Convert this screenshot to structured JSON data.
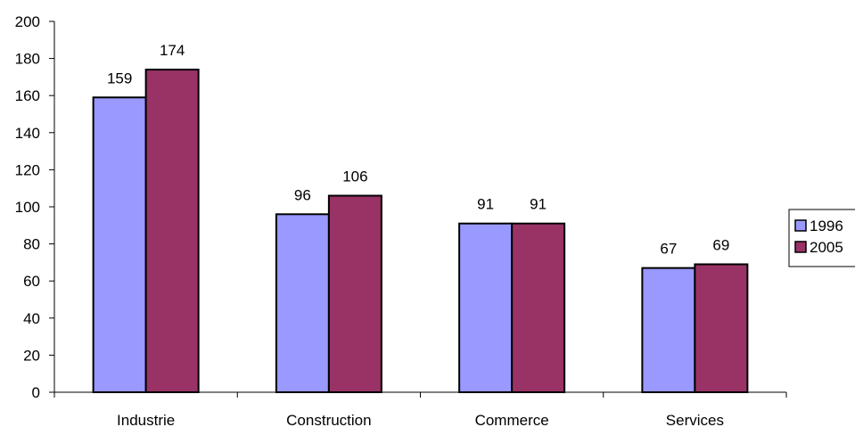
{
  "chart_data": {
    "type": "bar",
    "categories": [
      "Industrie",
      "Construction",
      "Commerce",
      "Services"
    ],
    "series": [
      {
        "name": "1996",
        "values": [
          159,
          96,
          91,
          67
        ],
        "color": "#9999FF"
      },
      {
        "name": "2005",
        "values": [
          174,
          106,
          91,
          69
        ],
        "color": "#993366"
      }
    ],
    "ylim": [
      0,
      200
    ],
    "yticks": [
      0,
      20,
      40,
      60,
      80,
      100,
      120,
      140,
      160,
      180,
      200
    ],
    "grid": false,
    "legend_position": "right",
    "title": "",
    "xlabel": "",
    "ylabel": ""
  }
}
